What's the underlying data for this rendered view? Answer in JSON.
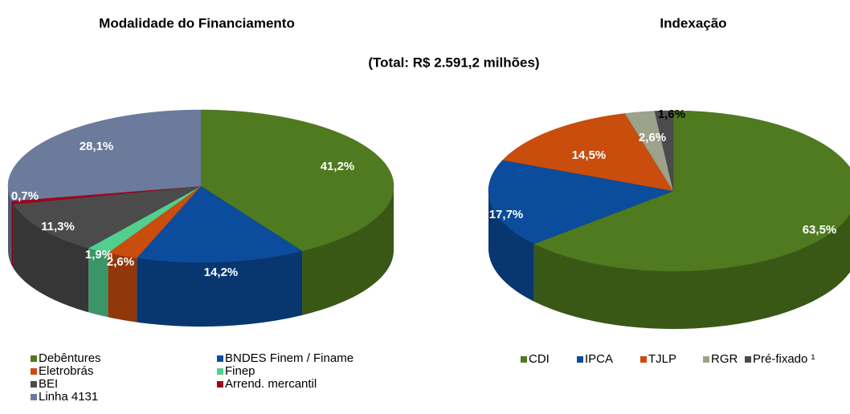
{
  "subtitle": "(Total: R$ 2.591,2 milhões)",
  "chart_data": [
    {
      "type": "pie",
      "title": "Modalidade do Financiamento",
      "categories": [
        "Debêntures",
        "BNDES Finem / Finame",
        "Eletrobrás",
        "Finep",
        "BEI",
        "Arrend. mercantil",
        "Linha 4131"
      ],
      "values": [
        41.2,
        14.2,
        2.6,
        1.9,
        11.3,
        0.7,
        28.1
      ],
      "value_labels": [
        "41,2%",
        "14,2%",
        "2,6%",
        "1,9%",
        "11,3%",
        "0,7%",
        "28,1%"
      ],
      "colors": [
        "#4f7a1f",
        "#0b4c9c",
        "#c94d0c",
        "#52cf8e",
        "#4b4b4b",
        "#a3001f",
        "#6c7b9c"
      ]
    },
    {
      "type": "pie",
      "title": "Indexação",
      "categories": [
        "CDI",
        "IPCA",
        "TJLP",
        "RGR",
        "Pré-fixado ¹"
      ],
      "values": [
        63.5,
        17.7,
        14.5,
        2.6,
        1.6
      ],
      "value_labels": [
        "63,5%",
        "17,7%",
        "14,5%",
        "2,6%",
        "1,6%"
      ],
      "colors": [
        "#4f7a1f",
        "#0b4c9c",
        "#c94d0c",
        "#9ca28c",
        "#4b4b4b"
      ]
    }
  ]
}
